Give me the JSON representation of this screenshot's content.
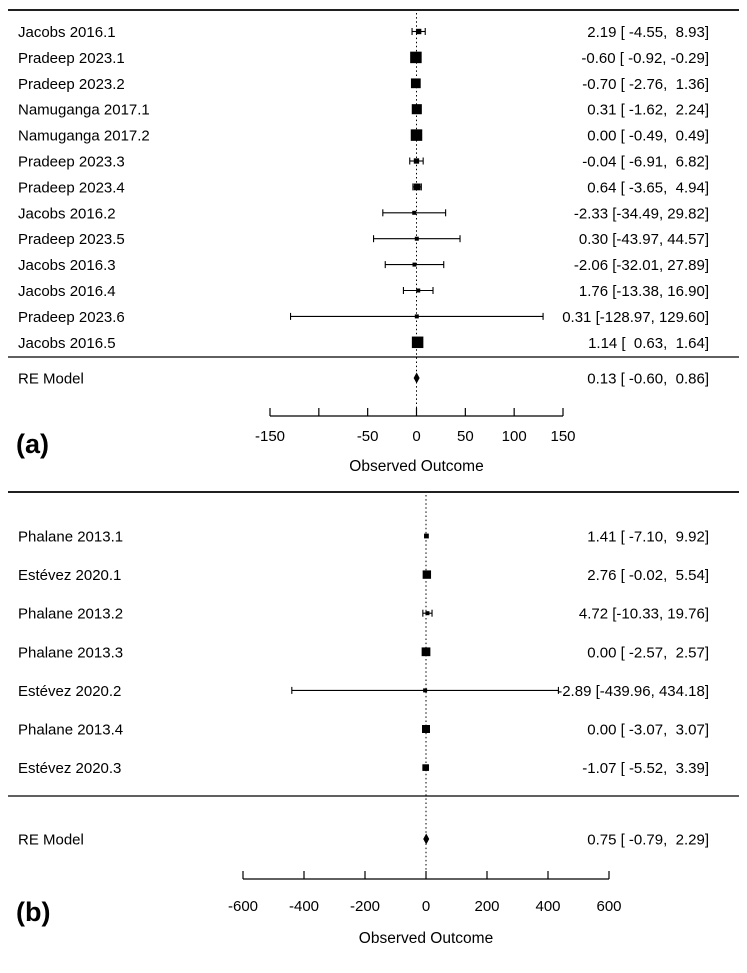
{
  "figure": {
    "background": "#ffffff",
    "ink": "#000000"
  },
  "chart_data": [
    {
      "type": "forest",
      "panel_label": "(a)",
      "xlabel": "Observed Outcome",
      "xlim": [
        -150,
        150
      ],
      "zero_line": 0,
      "ticks": [
        {
          "value": -150,
          "label": "-150"
        },
        {
          "value": -100,
          "label": ""
        },
        {
          "value": -50,
          "label": "-50"
        },
        {
          "value": 0,
          "label": "0"
        },
        {
          "value": 50,
          "label": "50"
        },
        {
          "value": 100,
          "label": "100"
        },
        {
          "value": 150,
          "label": "150"
        }
      ],
      "studies": [
        {
          "label": "Jacobs 2016.1",
          "estimate": 2.19,
          "ci_low": -4.55,
          "ci_high": 8.93,
          "annotation": "2.19 [ -4.55,  8.93]"
        },
        {
          "label": "Pradeep 2023.1",
          "estimate": -0.6,
          "ci_low": -0.92,
          "ci_high": -0.29,
          "annotation": "-0.60 [ -0.92, -0.29]"
        },
        {
          "label": "Pradeep 2023.2",
          "estimate": -0.7,
          "ci_low": -2.76,
          "ci_high": 1.36,
          "annotation": "-0.70 [ -2.76,  1.36]"
        },
        {
          "label": "Namuganga 2017.1",
          "estimate": 0.31,
          "ci_low": -1.62,
          "ci_high": 2.24,
          "annotation": "0.31 [ -1.62,  2.24]"
        },
        {
          "label": "Namuganga 2017.2",
          "estimate": 0.0,
          "ci_low": -0.49,
          "ci_high": 0.49,
          "annotation": "0.00 [ -0.49,  0.49]"
        },
        {
          "label": "Pradeep 2023.3",
          "estimate": -0.04,
          "ci_low": -6.91,
          "ci_high": 6.82,
          "annotation": "-0.04 [ -6.91,  6.82]"
        },
        {
          "label": "Pradeep 2023.4",
          "estimate": 0.64,
          "ci_low": -3.65,
          "ci_high": 4.94,
          "annotation": "0.64 [ -3.65,  4.94]"
        },
        {
          "label": "Jacobs 2016.2",
          "estimate": -2.33,
          "ci_low": -34.49,
          "ci_high": 29.82,
          "annotation": "-2.33 [-34.49, 29.82]"
        },
        {
          "label": "Pradeep 2023.5",
          "estimate": 0.3,
          "ci_low": -43.97,
          "ci_high": 44.57,
          "annotation": "0.30 [-43.97, 44.57]"
        },
        {
          "label": "Jacobs 2016.3",
          "estimate": -2.06,
          "ci_low": -32.01,
          "ci_high": 27.89,
          "annotation": "-2.06 [-32.01, 27.89]"
        },
        {
          "label": "Jacobs 2016.4",
          "estimate": 1.76,
          "ci_low": -13.38,
          "ci_high": 16.9,
          "annotation": "1.76 [-13.38, 16.90]"
        },
        {
          "label": "Pradeep 2023.6",
          "estimate": 0.31,
          "ci_low": -128.97,
          "ci_high": 129.6,
          "annotation": "0.31 [-128.97, 129.60]"
        },
        {
          "label": "Jacobs 2016.5",
          "estimate": 1.14,
          "ci_low": 0.63,
          "ci_high": 1.64,
          "annotation": "1.14 [  0.63,  1.64]"
        }
      ],
      "summary": {
        "label": "RE Model",
        "estimate": 0.13,
        "ci_low": -0.6,
        "ci_high": 0.86,
        "annotation": "0.13 [ -0.60,  0.86]"
      }
    },
    {
      "type": "forest",
      "panel_label": "(b)",
      "xlabel": "Observed Outcome",
      "xlim": [
        -600,
        600
      ],
      "zero_line": 0,
      "ticks": [
        {
          "value": -600,
          "label": "-600"
        },
        {
          "value": -400,
          "label": "-400"
        },
        {
          "value": -200,
          "label": "-200"
        },
        {
          "value": 0,
          "label": "0"
        },
        {
          "value": 200,
          "label": "200"
        },
        {
          "value": 400,
          "label": "400"
        },
        {
          "value": 600,
          "label": "600"
        }
      ],
      "studies": [
        {
          "label": "Phalane 2013.1",
          "estimate": 1.41,
          "ci_low": -7.1,
          "ci_high": 9.92,
          "annotation": "1.41 [ -7.10,  9.92]"
        },
        {
          "label": "Estévez 2020.1",
          "estimate": 2.76,
          "ci_low": -0.02,
          "ci_high": 5.54,
          "annotation": "2.76 [ -0.02,  5.54]"
        },
        {
          "label": "Phalane 2013.2",
          "estimate": 4.72,
          "ci_low": -10.33,
          "ci_high": 19.76,
          "annotation": "4.72 [-10.33, 19.76]"
        },
        {
          "label": "Phalane 2013.3",
          "estimate": 0.0,
          "ci_low": -2.57,
          "ci_high": 2.57,
          "annotation": "0.00 [ -2.57,  2.57]"
        },
        {
          "label": "Estévez 2020.2",
          "estimate": -2.89,
          "ci_low": -439.96,
          "ci_high": 434.18,
          "annotation": "-2.89 [-439.96, 434.18]"
        },
        {
          "label": "Phalane 2013.4",
          "estimate": 0.0,
          "ci_low": -3.07,
          "ci_high": 3.07,
          "annotation": "0.00 [ -3.07,  3.07]"
        },
        {
          "label": "Estévez 2020.3",
          "estimate": -1.07,
          "ci_low": -5.52,
          "ci_high": 3.39,
          "annotation": "-1.07 [ -5.52,  3.39]"
        }
      ],
      "summary": {
        "label": "RE Model",
        "estimate": 0.75,
        "ci_low": -0.79,
        "ci_high": 2.29,
        "annotation": "0.75 [ -0.79,  2.29]"
      }
    }
  ]
}
